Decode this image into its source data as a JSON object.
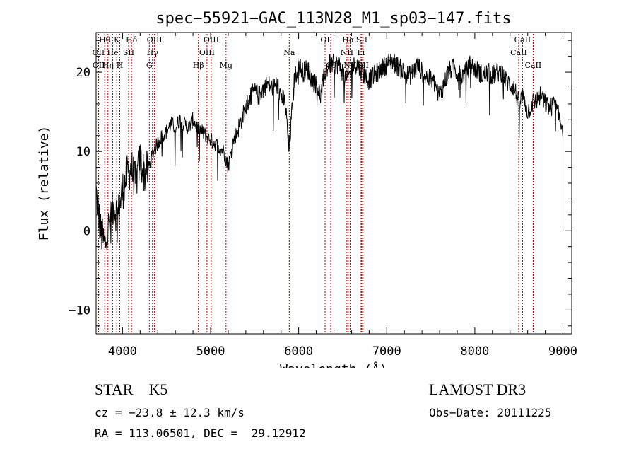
{
  "chart_data": {
    "type": "line",
    "title": "spec−55921−GAC_113N28_M1_sp03−147.fits",
    "xlabel": "Wavelength (Å)",
    "ylabel": "Flux (relative)",
    "xlim": [
      3700,
      9100
    ],
    "ylim": [
      -13,
      25
    ],
    "xticks": [
      4000,
      5000,
      6000,
      7000,
      8000,
      9000
    ],
    "yticks": [
      -10,
      0,
      10,
      20
    ],
    "x": [
      3700,
      3750,
      3800,
      3850,
      3900,
      3950,
      4000,
      4050,
      4100,
      4150,
      4200,
      4250,
      4300,
      4350,
      4400,
      4450,
      4500,
      4550,
      4600,
      4650,
      4700,
      4750,
      4800,
      4850,
      4900,
      4950,
      5000,
      5050,
      5100,
      5150,
      5200,
      5250,
      5300,
      5350,
      5400,
      5450,
      5500,
      5550,
      5600,
      5650,
      5700,
      5750,
      5800,
      5850,
      5890,
      5950,
      6000,
      6050,
      6100,
      6150,
      6200,
      6250,
      6300,
      6350,
      6400,
      6450,
      6500,
      6550,
      6600,
      6650,
      6700,
      6750,
      6800,
      6850,
      6900,
      6950,
      7000,
      7050,
      7100,
      7150,
      7200,
      7250,
      7300,
      7350,
      7400,
      7450,
      7500,
      7550,
      7600,
      7650,
      7700,
      7750,
      7800,
      7850,
      7900,
      7950,
      8000,
      8050,
      8100,
      8150,
      8200,
      8250,
      8300,
      8350,
      8400,
      8450,
      8500,
      8550,
      8600,
      8650,
      8700,
      8750,
      8800,
      8850,
      8900,
      8950,
      9000
    ],
    "y": [
      5,
      0,
      -2,
      1,
      3,
      2,
      5,
      7,
      8,
      6,
      9,
      7,
      8,
      10,
      11,
      12,
      12.5,
      13.5,
      13,
      14,
      13.5,
      13,
      14,
      13,
      12.5,
      12,
      11.5,
      11,
      10.5,
      10,
      8,
      11,
      12.5,
      14,
      15.5,
      17,
      17.5,
      17,
      18,
      18.5,
      18,
      18.5,
      17,
      16,
      10,
      19,
      21,
      20,
      20.5,
      19,
      18.5,
      17,
      20,
      21,
      21,
      21,
      20,
      19,
      20.5,
      21,
      20.5,
      19.5,
      19,
      19.5,
      20,
      20.5,
      21,
      21.5,
      21,
      20.5,
      20,
      19.5,
      20,
      21,
      20,
      19.5,
      19,
      18.5,
      17,
      18.5,
      20,
      20.5,
      20,
      19.5,
      20,
      21,
      20.5,
      20,
      19.5,
      20,
      19.5,
      20,
      20,
      19,
      18.5,
      18,
      16,
      17,
      15,
      16,
      16.5,
      17,
      16,
      15.5,
      16,
      14.5,
      13
    ],
    "lines": [
      {
        "label": "Hθ",
        "wl": 3798,
        "row": 0
      },
      {
        "label": "K",
        "wl": 3934,
        "row": 0
      },
      {
        "label": "Hδ",
        "wl": 4102,
        "row": 0
      },
      {
        "label": "OIII",
        "wl": 4363,
        "row": 0
      },
      {
        "label": "OIII",
        "wl": 5007,
        "row": 0
      },
      {
        "label": "OI",
        "wl": 6300,
        "row": 0
      },
      {
        "label": "Hα",
        "wl": 6563,
        "row": 0
      },
      {
        "label": "SII",
        "wl": 6717,
        "row": 0
      },
      {
        "label": "CaII",
        "wl": 8542,
        "row": 0
      },
      {
        "label": "OII",
        "wl": 3727,
        "row": 1
      },
      {
        "label": "He",
        "wl": 3889,
        "row": 1
      },
      {
        "label": "SII",
        "wl": 4069,
        "row": 1
      },
      {
        "label": "Hγ",
        "wl": 4340,
        "row": 1
      },
      {
        "label": "OIII",
        "wl": 4959,
        "row": 1
      },
      {
        "label": "Na",
        "wl": 5893,
        "row": 1
      },
      {
        "label": "NII",
        "wl": 6548,
        "row": 1
      },
      {
        "label": "Li",
        "wl": 6708,
        "row": 1
      },
      {
        "label": "CaII",
        "wl": 8498,
        "row": 1
      },
      {
        "label": "OII",
        "wl": 3729,
        "row": 2
      },
      {
        "label": "Hη",
        "wl": 3835,
        "row": 2
      },
      {
        "label": "H",
        "wl": 3969,
        "row": 2
      },
      {
        "label": "G",
        "wl": 4304,
        "row": 2
      },
      {
        "label": "Hβ",
        "wl": 4861,
        "row": 2
      },
      {
        "label": "Mg",
        "wl": 5175,
        "row": 2
      },
      {
        "label": "OI",
        "wl": 6364,
        "row": 2
      },
      {
        "label": "NII",
        "wl": 6584,
        "row": 2
      },
      {
        "label": "SII",
        "wl": 6731,
        "row": 2
      },
      {
        "label": "CaII",
        "wl": 8662,
        "row": 2
      }
    ]
  },
  "info": {
    "class_line": "STAR    K5",
    "cz_line": "cz = −23.8 ± 12.3 km/s",
    "radec_line": "RA = 113.06501, DEC =  29.12912",
    "survey": "LAMOST DR3",
    "obs_date": "Obs−Date: 20111225"
  },
  "colors": {
    "axis": "#000000",
    "spectrum": "#000000",
    "line_marker": "#b00000"
  }
}
